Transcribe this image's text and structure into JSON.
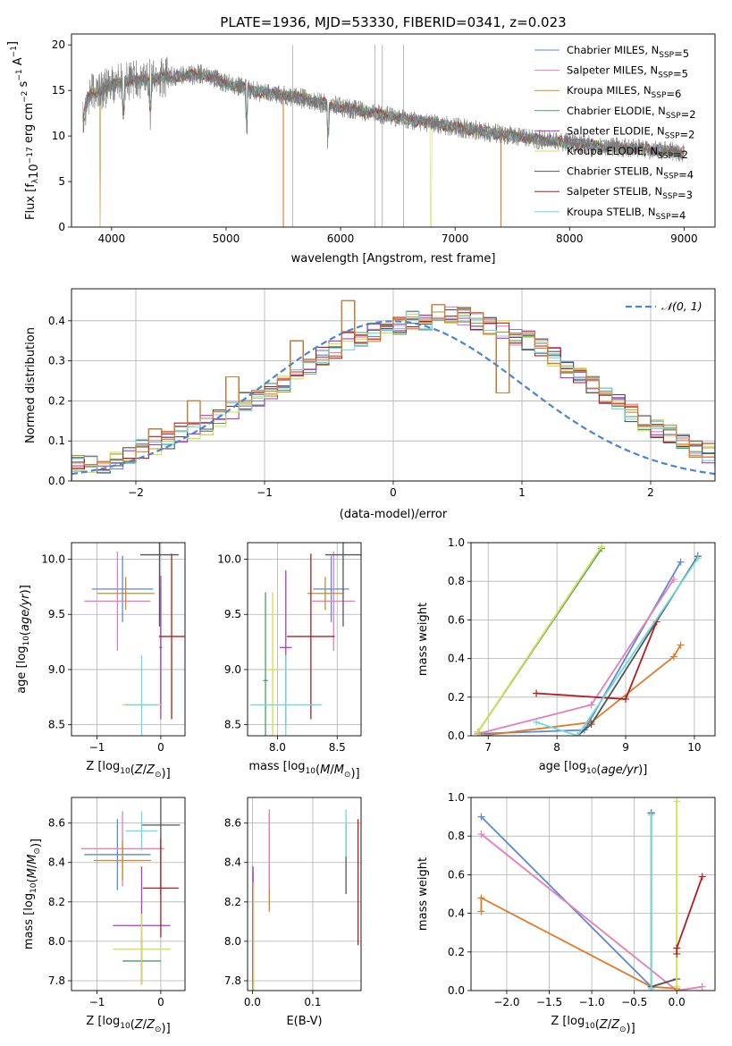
{
  "colors": {
    "Chabrier MILES": "#5a8ad8",
    "Salpeter MILES": "#e57fb4",
    "Kroupa MILES": "#c98b2c",
    "Chabrier ELODIE": "#4d9a6a",
    "Salpeter ELODIE": "#a83cc6",
    "Kroupa ELODIE": "#cfe04a",
    "Chabrier STELIB": "#555555",
    "Salpeter STELIB": "#b01e1e",
    "Kroupa STELIB": "#6cd8e0",
    "orange": "#e07a28",
    "gaussian": "#4a86d0",
    "grid": "#b0b0b0"
  },
  "chart_data": [
    {
      "id": "spectrum",
      "type": "line",
      "title": "PLATE=1936, MJD=53330, FIBERID=0341, z=0.023",
      "xlabel": "wavelength [Angstrom, rest frame]",
      "ylabel_parts": [
        "Flux [f",
        "λ",
        "10",
        "−17",
        " erg cm",
        "−2",
        " s",
        "−1",
        " A",
        "−1",
        "]"
      ],
      "xlim": [
        3650,
        9270
      ],
      "ylim": [
        0,
        21.2
      ],
      "xticks": [
        4000,
        5000,
        6000,
        7000,
        8000,
        9000
      ],
      "yticks": [
        0,
        5,
        10,
        15,
        20
      ],
      "grid": false,
      "legend_position": "top-right",
      "legend": [
        {
          "name": "Chabrier MILES",
          "sub": "SSP",
          "n": "=5"
        },
        {
          "name": "Salpeter MILES",
          "sub": "SSP",
          "n": "=5"
        },
        {
          "name": "Kroupa MILES",
          "sub": "SSP",
          "n": "=6"
        },
        {
          "name": "Chabrier ELODIE",
          "sub": "SSP",
          "n": "=2"
        },
        {
          "name": "Salpeter ELODIE",
          "sub": "SSP",
          "n": "=2"
        },
        {
          "name": "Kroupa ELODIE",
          "sub": "SSP",
          "n": "=2"
        },
        {
          "name": "Chabrier STELIB",
          "sub": "SSP",
          "n": "=4"
        },
        {
          "name": "Salpeter STELIB",
          "sub": "SSP",
          "n": "=3"
        },
        {
          "name": "Kroupa STELIB",
          "sub": "SSP",
          "n": "=4"
        }
      ],
      "legend_prefix": ", N",
      "continuum": [
        [
          3750,
          12
        ],
        [
          3800,
          14.5
        ],
        [
          3900,
          15
        ],
        [
          4000,
          15.5
        ],
        [
          4100,
          16
        ],
        [
          4300,
          16.2
        ],
        [
          4500,
          16.5
        ],
        [
          4800,
          16.8
        ],
        [
          5000,
          15.8
        ],
        [
          5300,
          14.8
        ],
        [
          5600,
          14.3
        ],
        [
          6000,
          13.2
        ],
        [
          6300,
          12.5
        ],
        [
          6600,
          11.8
        ],
        [
          7000,
          11
        ],
        [
          7400,
          10.2
        ],
        [
          7800,
          9.5
        ],
        [
          8200,
          9
        ],
        [
          8600,
          8.6
        ],
        [
          9000,
          8.2
        ]
      ],
      "data_range": [
        3750,
        9000
      ],
      "dips": [
        [
          4102,
          13
        ],
        [
          4340,
          13
        ],
        [
          5180,
          12.5
        ],
        [
          5890,
          12
        ]
      ],
      "model_dropouts": [
        [
          3900,
          "Kroupa MILES"
        ],
        [
          5500,
          "orange"
        ],
        [
          6790,
          "Kroupa ELODIE"
        ],
        [
          7400,
          "orange"
        ]
      ],
      "data_spikes": [
        [
          5580,
          20
        ],
        [
          6300,
          20
        ],
        [
          6365,
          20
        ],
        [
          6550,
          20
        ]
      ]
    },
    {
      "id": "residuals",
      "type": "histogram",
      "xlabel": "(data-model)/error",
      "ylabel": "Normed distribution",
      "xlim": [
        -2.5,
        2.5
      ],
      "ylim": [
        0,
        0.48
      ],
      "xticks": [
        -2,
        -1,
        0,
        1,
        2
      ],
      "yticks": [
        0,
        0.1,
        0.2,
        0.3,
        0.4
      ],
      "grid": true,
      "legend_position": "top-right",
      "gaussian_label": "𝒩(0, 1)",
      "bin_width": 0.1,
      "bin_start": -2.5,
      "envelope": [
        0.04,
        0.04,
        0.03,
        0.05,
        0.06,
        0.08,
        0.09,
        0.1,
        0.12,
        0.13,
        0.14,
        0.16,
        0.18,
        0.2,
        0.21,
        0.22,
        0.24,
        0.27,
        0.29,
        0.31,
        0.33,
        0.35,
        0.36,
        0.37,
        0.38,
        0.39,
        0.4,
        0.4,
        0.41,
        0.41,
        0.41,
        0.4,
        0.39,
        0.38,
        0.36,
        0.35,
        0.33,
        0.31,
        0.28,
        0.26,
        0.24,
        0.21,
        0.2,
        0.17,
        0.15,
        0.13,
        0.12,
        0.1,
        0.08,
        0.07,
        0.06,
        0.05,
        0.05,
        0.04,
        0.04
      ],
      "highlight_bins": [
        [
          -1.9,
          0.13
        ],
        [
          -1.6,
          0.2
        ],
        [
          -1.3,
          0.26
        ],
        [
          -0.4,
          0.45
        ],
        [
          0.3,
          0.44
        ],
        [
          -0.8,
          0.35
        ],
        [
          0.8,
          0.22
        ]
      ]
    },
    {
      "id": "z_age",
      "type": "errorbar",
      "xlabel_parts": [
        "Z [log",
        "10",
        "(",
        "Z",
        "/",
        "Z",
        "⊙",
        ")]"
      ],
      "ylabel_parts": [
        "age  [log",
        "10",
        "(",
        "age/yr",
        ")]"
      ],
      "xlim": [
        -1.4,
        0.38
      ],
      "ylim": [
        8.4,
        10.15
      ],
      "xticks": [
        -1,
        0
      ],
      "yticks": [
        8.5,
        9.0,
        9.5,
        10.0
      ],
      "grid": true,
      "points": [
        {
          "c": "Chabrier MILES",
          "x": -0.6,
          "xerr": 0.48,
          "y": 9.73,
          "yerr": 0.3
        },
        {
          "c": "Salpeter MILES",
          "x": -0.68,
          "xerr": 0.52,
          "y": 9.62,
          "yerr": 0.45
        },
        {
          "c": "Kroupa MILES",
          "x": -0.55,
          "xerr": 0.45,
          "y": 9.69,
          "yerr": 0.15
        },
        {
          "c": "Chabrier ELODIE",
          "x": 0,
          "xerr": 0.02,
          "y": 9.2,
          "yerr": 0.55
        },
        {
          "c": "Salpeter ELODIE",
          "x": 0,
          "xerr": 0.02,
          "y": 9.2,
          "yerr": 0.65
        },
        {
          "c": "Kroupa ELODIE",
          "x": -0.3,
          "xerr": 0.3,
          "y": 8.68,
          "yerr": 0.02
        },
        {
          "c": "Chabrier STELIB",
          "x": -0.02,
          "xerr": 0.3,
          "y": 10.04,
          "yerr": 0.65
        },
        {
          "c": "Salpeter STELIB",
          "x": 0.17,
          "xerr": 0.2,
          "y": 9.3,
          "yerr": 0.75
        },
        {
          "c": "Kroupa STELIB",
          "x": -0.3,
          "xerr": 0.25,
          "y": 8.68,
          "yerr": 0.45
        }
      ]
    },
    {
      "id": "mass_age",
      "type": "errorbar",
      "xlabel_parts": [
        "mass [log",
        "10",
        "(",
        "M",
        "/",
        "M",
        "⊙",
        ")]"
      ],
      "ylabel_parts": [],
      "xlim": [
        7.75,
        8.7
      ],
      "ylim": [
        8.4,
        10.15
      ],
      "xticks": [
        8.0,
        8.5
      ],
      "yticks": [
        8.5,
        9.0,
        9.5,
        10.0
      ],
      "grid": true,
      "points": [
        {
          "c": "Chabrier MILES",
          "x": 8.45,
          "xerr": 0.15,
          "y": 9.73,
          "yerr": 0.3
        },
        {
          "c": "Salpeter MILES",
          "x": 8.47,
          "xerr": 0.18,
          "y": 9.62,
          "yerr": 0.45
        },
        {
          "c": "Kroupa MILES",
          "x": 8.4,
          "xerr": 0.15,
          "y": 9.69,
          "yerr": 0.15
        },
        {
          "c": "Chabrier ELODIE",
          "x": 7.9,
          "xerr": 0.02,
          "y": 8.9,
          "yerr": 0.8
        },
        {
          "c": "Salpeter ELODIE",
          "x": 8.07,
          "xerr": 0.05,
          "y": 9.2,
          "yerr": 0.7
        },
        {
          "c": "Kroupa ELODIE",
          "x": 7.96,
          "xerr": 0.05,
          "y": 9.0,
          "yerr": 0.7
        },
        {
          "c": "Chabrier STELIB",
          "x": 8.55,
          "xerr": 0.15,
          "y": 10.04,
          "yerr": 0.65
        },
        {
          "c": "Salpeter STELIB",
          "x": 8.28,
          "xerr": 0.2,
          "y": 9.3,
          "yerr": 0.75
        },
        {
          "c": "Kroupa STELIB",
          "x": 8.07,
          "xerr": 0.3,
          "y": 8.68,
          "yerr": 0.45
        }
      ]
    },
    {
      "id": "age_weight",
      "type": "line",
      "xlabel_parts": [
        "age  [log",
        "10",
        "(",
        "age/yr",
        ")]"
      ],
      "ylabel": "mass weight",
      "xlim": [
        6.75,
        10.3
      ],
      "ylim": [
        0,
        1.0
      ],
      "xticks": [
        7,
        8,
        9,
        10
      ],
      "yticks": [
        0.0,
        0.2,
        0.4,
        0.6,
        0.8,
        1.0
      ],
      "grid": true,
      "series": [
        {
          "c": "Chabrier MILES",
          "pts": [
            [
              6.85,
              0.01
            ],
            [
              8.4,
              0.03
            ],
            [
              9.8,
              0.9
            ]
          ]
        },
        {
          "c": "Salpeter MILES",
          "pts": [
            [
              6.85,
              0.01
            ],
            [
              8.5,
              0.16
            ],
            [
              9.7,
              0.81
            ]
          ]
        },
        {
          "c": "orange",
          "pts": [
            [
              6.9,
              0.0
            ],
            [
              8.5,
              0.07
            ],
            [
              9.7,
              0.41
            ],
            [
              9.8,
              0.47
            ]
          ]
        },
        {
          "c": "Chabrier ELODIE",
          "pts": [
            [
              6.85,
              0.02
            ],
            [
              8.65,
              0.97
            ]
          ]
        },
        {
          "c": "Kroupa ELODIE",
          "pts": [
            [
              6.85,
              0.02
            ],
            [
              8.65,
              0.98
            ]
          ]
        },
        {
          "c": "Chabrier STELIB",
          "pts": [
            [
              8.3,
              0.0
            ],
            [
              8.5,
              0.06
            ],
            [
              10.05,
              0.93
            ]
          ]
        },
        {
          "c": "Salpeter STELIB",
          "pts": [
            [
              7.7,
              0.22
            ],
            [
              9.0,
              0.19
            ],
            [
              9.45,
              0.59
            ]
          ]
        },
        {
          "c": "Kroupa STELIB",
          "pts": [
            [
              7.7,
              0.07
            ],
            [
              8.3,
              0.0
            ],
            [
              10.05,
              0.92
            ]
          ]
        }
      ]
    },
    {
      "id": "z_mass",
      "type": "errorbar",
      "xlabel_parts": [
        "Z [log",
        "10",
        "(",
        "Z",
        "/",
        "Z",
        "⊙",
        ")]"
      ],
      "ylabel_parts": [
        "mass [log",
        "10",
        "(",
        "M",
        "/",
        "M",
        "⊙",
        ")]"
      ],
      "xlim": [
        -1.4,
        0.38
      ],
      "ylim": [
        7.75,
        8.73
      ],
      "xticks": [
        -1,
        0
      ],
      "yticks": [
        7.8,
        8.0,
        8.2,
        8.4,
        8.6
      ],
      "grid": true,
      "points": [
        {
          "c": "Chabrier MILES",
          "x": -0.68,
          "xerr": 0.52,
          "y": 8.44,
          "yerr": 0.18
        },
        {
          "c": "Salpeter MILES",
          "x": -0.6,
          "xerr": 0.65,
          "y": 8.47,
          "yerr": 0.19
        },
        {
          "c": "Kroupa MILES",
          "x": -0.6,
          "xerr": 0.45,
          "y": 8.41,
          "yerr": 0.1
        },
        {
          "c": "Chabrier ELODIE",
          "x": -0.3,
          "xerr": 0.3,
          "y": 7.9,
          "yerr": 0.12
        },
        {
          "c": "Salpeter ELODIE",
          "x": -0.3,
          "xerr": 0.45,
          "y": 8.08,
          "yerr": 0.3
        },
        {
          "c": "Kroupa ELODIE",
          "x": -0.3,
          "xerr": 0.45,
          "y": 7.96,
          "yerr": 0.18
        },
        {
          "c": "Chabrier STELIB",
          "x": 0,
          "xerr": 0.3,
          "y": 8.59,
          "yerr": 0.35
        },
        {
          "c": "Salpeter STELIB",
          "x": 0,
          "xerr": 0.28,
          "y": 8.27,
          "yerr": 0.25
        },
        {
          "c": "Kroupa STELIB",
          "x": -0.3,
          "xerr": 0.25,
          "y": 8.56,
          "yerr": 0.1
        }
      ]
    },
    {
      "id": "ebv_mass",
      "type": "errorbar",
      "xlabel": "E(B-V)",
      "ylabel_parts": [],
      "xlim": [
        -0.008,
        0.18
      ],
      "ylim": [
        7.75,
        8.73
      ],
      "xticks": [
        0.0,
        0.1
      ],
      "yticks": [
        7.8,
        8.0,
        8.2,
        8.4,
        8.6
      ],
      "grid": true,
      "points": [
        {
          "c": "Chabrier ELODIE",
          "x": 0.001,
          "xerr": 0,
          "y": 8.05,
          "yerr": 0.3
        },
        {
          "c": "Salpeter ELODIE",
          "x": 0.001,
          "xerr": 0,
          "y": 8.08,
          "yerr": 0.3
        },
        {
          "c": "Kroupa ELODIE",
          "x": 0.002,
          "xerr": 0,
          "y": 8.0,
          "yerr": 0.3
        },
        {
          "c": "orange",
          "x": 0.028,
          "xerr": 0,
          "y": 8.4,
          "yerr": 0.25
        },
        {
          "c": "Salpeter MILES",
          "x": 0.028,
          "xerr": 0,
          "y": 8.47,
          "yerr": 0.2
        },
        {
          "c": "Chabrier STELIB",
          "x": 0.155,
          "xerr": 0,
          "y": 8.42,
          "yerr": 0.18
        },
        {
          "c": "Kroupa STELIB",
          "x": 0.155,
          "xerr": 0,
          "y": 8.55,
          "yerr": 0.12
        },
        {
          "c": "Salpeter STELIB",
          "x": 0.175,
          "xerr": 0,
          "y": 8.3,
          "yerr": 0.32
        }
      ]
    },
    {
      "id": "z_weight",
      "type": "line",
      "xlabel_parts": [
        "Z [log",
        "10",
        "(",
        "Z",
        "/",
        "Z",
        "⊙",
        ")]"
      ],
      "ylabel": "mass weight",
      "xlim": [
        -2.42,
        0.45
      ],
      "ylim": [
        0,
        1.0
      ],
      "xticks": [
        -2.0,
        -1.5,
        -1.0,
        -0.5,
        0.0
      ],
      "yticks": [
        0.0,
        0.2,
        0.4,
        0.6,
        0.8,
        1.0
      ],
      "grid": true,
      "series": [
        {
          "c": "Chabrier MILES",
          "pts": [
            [
              -2.3,
              0.9
            ],
            [
              -0.3,
              0.02
            ],
            [
              0,
              0.06
            ]
          ]
        },
        {
          "c": "Salpeter MILES",
          "pts": [
            [
              -2.3,
              0.81
            ],
            [
              0.0,
              0.0
            ],
            [
              0.3,
              0.02
            ]
          ]
        },
        {
          "c": "orange",
          "pts": [
            [
              -2.3,
              0.41
            ],
            [
              -2.3,
              0.48
            ],
            [
              -0.3,
              0.02
            ],
            [
              0,
              0.01
            ]
          ]
        },
        {
          "c": "Chabrier STELIB",
          "pts": [
            [
              -0.3,
              0.92
            ],
            [
              -0.3,
              0.02
            ],
            [
              0,
              0.06
            ]
          ]
        },
        {
          "c": "Kroupa STELIB",
          "pts": [
            [
              -0.3,
              0.91
            ],
            [
              -0.3,
              0.01
            ]
          ]
        },
        {
          "c": "Kroupa ELODIE",
          "pts": [
            [
              0,
              0.98
            ],
            [
              0,
              0.02
            ]
          ]
        },
        {
          "c": "Salpeter STELIB",
          "pts": [
            [
              0,
              0.19
            ],
            [
              0,
              0.22
            ],
            [
              0.3,
              0.59
            ]
          ]
        }
      ]
    }
  ]
}
